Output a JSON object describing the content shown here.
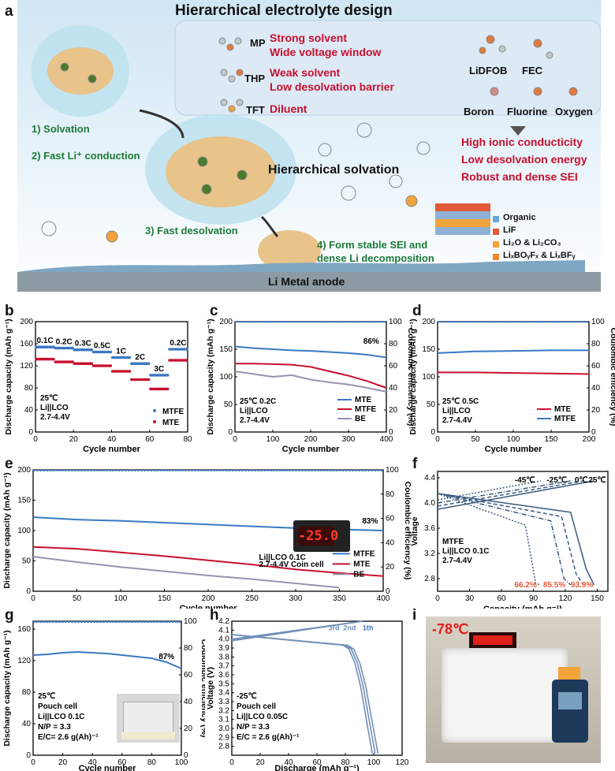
{
  "panel_labels": [
    "a",
    "b",
    "c",
    "d",
    "e",
    "f",
    "g",
    "h",
    "i"
  ],
  "colors": {
    "red": "#c8102e",
    "blue": "#3a78c2",
    "green": "#1d7a3a",
    "grey": "#9a92b0",
    "coulombic": "#3a78c2"
  },
  "panel_a": {
    "title": "Hierarchical electrolyte design",
    "solvents": [
      {
        "name": "MP",
        "desc1": "Strong solvent",
        "desc2": "Wide voltage window"
      },
      {
        "name": "THP",
        "desc1": "Weak solvent",
        "desc2": "Low desolvation barrier"
      },
      {
        "name": "TFT",
        "desc1": "Diluent",
        "desc2": ""
      }
    ],
    "salt": "LiDFOB",
    "additive": "FEC",
    "elements": [
      "Boron",
      "Fluorine",
      "Oxygen"
    ],
    "benefits": [
      "High ionic conducticity",
      "Low desolvation energy",
      "Robust and dense SEI"
    ],
    "steps": [
      "1) Solvation",
      "2) Fast Li⁺ conduction",
      "3) Fast desolvation",
      "4) Form stable SEI and",
      "dense Li decomposition"
    ],
    "center_label": "Hierarchical solvation",
    "sei_legend": [
      "Organic",
      "LiF",
      "Li₂O & Li₂CO₃",
      "LiₓBOᵧFₓ & LiₓBFᵧ"
    ],
    "anode": "Li Metal anode"
  },
  "panel_b": {
    "ylabel": "Discharge capacity (mAh g⁻¹)",
    "xlabel": "Cycle number",
    "rates": [
      "0.1C",
      "0.2C",
      "0.3C",
      "0.5C",
      "1C",
      "2C",
      "3C",
      "0.2C"
    ],
    "cond1": "25℃",
    "cond2": "Li||LCO",
    "cond3": "2.7-4.4V",
    "legend": [
      "MTFE",
      "MTE"
    ]
  },
  "panel_c": {
    "ylabel": "Discharge capacity (mAh g⁻¹)",
    "y2label": "Coulombic efficiency (%)",
    "xlabel": "Cycle number",
    "annot": "86%",
    "cond1": "25℃ 0.2C",
    "cond2": "Li||LCO",
    "cond3": "2.7-4.4V",
    "legend": [
      "MTE",
      "MTFE",
      "BE"
    ]
  },
  "panel_d": {
    "ylabel": "Discharge capacity (mAh g⁻¹)",
    "y2label": "Coulombic efficiency (%)",
    "xlabel": "Cycle number",
    "cond1": "25℃ 0.5C",
    "cond2": "Li||LCO",
    "cond3": "2.7-4.4V",
    "legend": [
      "MTE",
      "MTFE"
    ]
  },
  "panel_e": {
    "ylabel": "Discharge capacity (mAh g⁻¹)",
    "y2label": "Coulombic efficiency (%)",
    "xlabel": "Cycle number",
    "annot": "83%",
    "display": "-25.0",
    "cond1": "Li||LCO  0.1C",
    "cond2": "2.7-4.4V Coin cell",
    "legend": [
      "MTFE",
      "MTE",
      "BE"
    ]
  },
  "panel_f": {
    "ylabel": "Voltage",
    "xlabel": "Capacity (mAh g⁻¹)",
    "temps": [
      "-45℃",
      "-25℃",
      "0℃",
      "25℃"
    ],
    "cond1": "MTFE",
    "cond2": "Li||LCO  0.1C",
    "cond3": "2.7-4.4V",
    "retentions": [
      "66.2%",
      "85.5%",
      "93.9%"
    ]
  },
  "panel_g": {
    "ylabel": "Discharge capacity (mAh g⁻¹)",
    "y2label": "Coulombic efficiency (%)",
    "xlabel": "Cycle number",
    "annot": "87%",
    "cond": [
      "25℃",
      "Pouch cell",
      "Li||LCO 0.1C",
      "N/P = 3.3",
      "E/C= 2.6 g(Ah)⁻¹"
    ]
  },
  "panel_h": {
    "ylabel": "Voltage (V)",
    "xlabel": "Discharge (mAh g⁻¹)",
    "cycles": [
      "3rd",
      "2nd",
      "1th"
    ],
    "cond": [
      "-25℃",
      "Pouch cell",
      "Li||LCO 0.05C",
      "N/P = 3.3",
      "E/C = 2.6 g(Ah)⁻¹"
    ]
  },
  "panel_i": {
    "temp": "-78℃"
  },
  "chart_data": [
    {
      "type": "scatter",
      "panel": "b",
      "xlabel": "Cycle number",
      "ylabel": "Discharge capacity (mAh g⁻¹)",
      "xlim": [
        0,
        80
      ],
      "ylim": [
        0,
        200
      ],
      "categories": [
        "0.1C",
        "0.2C",
        "0.3C",
        "0.5C",
        "1C",
        "2C",
        "3C",
        "0.2C"
      ],
      "series": [
        {
          "name": "MTFE",
          "x_ranges": [
            [
              1,
              10
            ],
            [
              11,
              20
            ],
            [
              21,
              30
            ],
            [
              31,
              40
            ],
            [
              41,
              50
            ],
            [
              51,
              60
            ],
            [
              61,
              70
            ],
            [
              71,
              80
            ]
          ],
          "values": [
            154,
            152,
            149,
            145,
            135,
            124,
            103,
            150
          ]
        },
        {
          "name": "MTE",
          "x_ranges": [
            [
              1,
              10
            ],
            [
              11,
              20
            ],
            [
              21,
              30
            ],
            [
              31,
              40
            ],
            [
              41,
              50
            ],
            [
              51,
              60
            ],
            [
              61,
              70
            ],
            [
              71,
              80
            ]
          ],
          "values": [
            132,
            127,
            124,
            120,
            110,
            95,
            78,
            130
          ]
        }
      ]
    },
    {
      "type": "line",
      "panel": "c",
      "xlabel": "Cycle number",
      "ylabel": "Discharge capacity (mAh g⁻¹)",
      "y2label": "Coulombic efficiency (%)",
      "xlim": [
        0,
        400
      ],
      "ylim": [
        0,
        200
      ],
      "y2lim": [
        0,
        100
      ],
      "series": [
        {
          "name": "MTE",
          "x": [
            0,
            50,
            100,
            150,
            200,
            250,
            300,
            350,
            400
          ],
          "values": [
            155,
            152,
            150,
            148,
            147,
            145,
            143,
            140,
            135
          ]
        },
        {
          "name": "MTFE",
          "x": [
            0,
            50,
            100,
            150,
            200,
            250,
            300,
            350,
            400
          ],
          "values": [
            124,
            124,
            123,
            122,
            118,
            110,
            102,
            92,
            80
          ]
        },
        {
          "name": "BE",
          "x": [
            0,
            50,
            100,
            150,
            200,
            250,
            300,
            350,
            400
          ],
          "values": [
            110,
            105,
            100,
            103,
            95,
            90,
            86,
            80,
            73
          ]
        }
      ],
      "ce": 99.8
    },
    {
      "type": "line",
      "panel": "d",
      "xlabel": "Cycle number",
      "ylabel": "Discharge capacity (mAh g⁻¹)",
      "y2label": "Coulombic efficiency (%)",
      "xlim": [
        0,
        200
      ],
      "ylim": [
        0,
        200
      ],
      "y2lim": [
        0,
        100
      ],
      "series": [
        {
          "name": "MTE",
          "x": [
            0,
            50,
            100,
            150,
            200
          ],
          "values": [
            108,
            108,
            107,
            106,
            105
          ]
        },
        {
          "name": "MTFE",
          "x": [
            0,
            50,
            100,
            150,
            200
          ],
          "values": [
            143,
            146,
            147,
            148,
            148
          ]
        }
      ],
      "ce": 99.8
    },
    {
      "type": "line",
      "panel": "e",
      "xlabel": "Cycle number",
      "ylabel": "Discharge capacity (mAh g⁻¹)",
      "y2label": "Coulombic efficiency (%)",
      "xlim": [
        0,
        400
      ],
      "ylim": [
        0,
        200
      ],
      "y2lim": [
        0,
        100
      ],
      "series": [
        {
          "name": "MTFE",
          "x": [
            0,
            50,
            100,
            150,
            200,
            250,
            300,
            350,
            400
          ],
          "values": [
            122,
            118,
            116,
            113,
            110,
            107,
            104,
            102,
            100
          ]
        },
        {
          "name": "MTE",
          "x": [
            0,
            50,
            100,
            150,
            200,
            250,
            300,
            350,
            400
          ],
          "values": [
            73,
            70,
            64,
            58,
            51,
            44,
            36,
            30,
            25
          ]
        },
        {
          "name": "BE",
          "x": [
            0,
            50,
            100,
            150,
            200,
            250,
            300,
            350
          ],
          "values": [
            57,
            48,
            40,
            33,
            26,
            20,
            13,
            6
          ]
        }
      ],
      "ce": 99.5
    },
    {
      "type": "line",
      "panel": "f",
      "xlabel": "Capacity (mAh g⁻¹)",
      "ylabel": "Voltage",
      "xlim": [
        0,
        160
      ],
      "ylim": [
        2.6,
        4.5
      ],
      "series": [
        {
          "name": "-45℃",
          "discharge_end": 97
        },
        {
          "name": "-25℃",
          "discharge_end": 125
        },
        {
          "name": "0℃",
          "discharge_end": 137
        },
        {
          "name": "25℃",
          "discharge_end": 147
        }
      ]
    },
    {
      "type": "line",
      "panel": "g",
      "xlabel": "Cycle number",
      "ylabel": "Discharge capacity (mAh g⁻¹)",
      "y2label": "Coulombic efficiency (%)",
      "xlim": [
        0,
        100
      ],
      "ylim": [
        0,
        170
      ],
      "y2lim": [
        0,
        100
      ],
      "series": [
        {
          "name": "capacity",
          "x": [
            0,
            10,
            20,
            30,
            40,
            50,
            60,
            70,
            80,
            90,
            100
          ],
          "values": [
            127,
            128,
            130,
            131,
            130,
            129,
            127,
            125,
            123,
            118,
            110
          ]
        }
      ],
      "ce": 99.5
    },
    {
      "type": "line",
      "panel": "h",
      "xlabel": "Discharge (mAh g⁻¹)",
      "ylabel": "Voltage (V)",
      "xlim": [
        0,
        120
      ],
      "ylim": [
        2.7,
        4.2
      ],
      "series": [
        {
          "name": "1th",
          "discharge_end": 103
        },
        {
          "name": "2nd",
          "discharge_end": 101
        },
        {
          "name": "3rd",
          "discharge_end": 99
        }
      ]
    }
  ]
}
